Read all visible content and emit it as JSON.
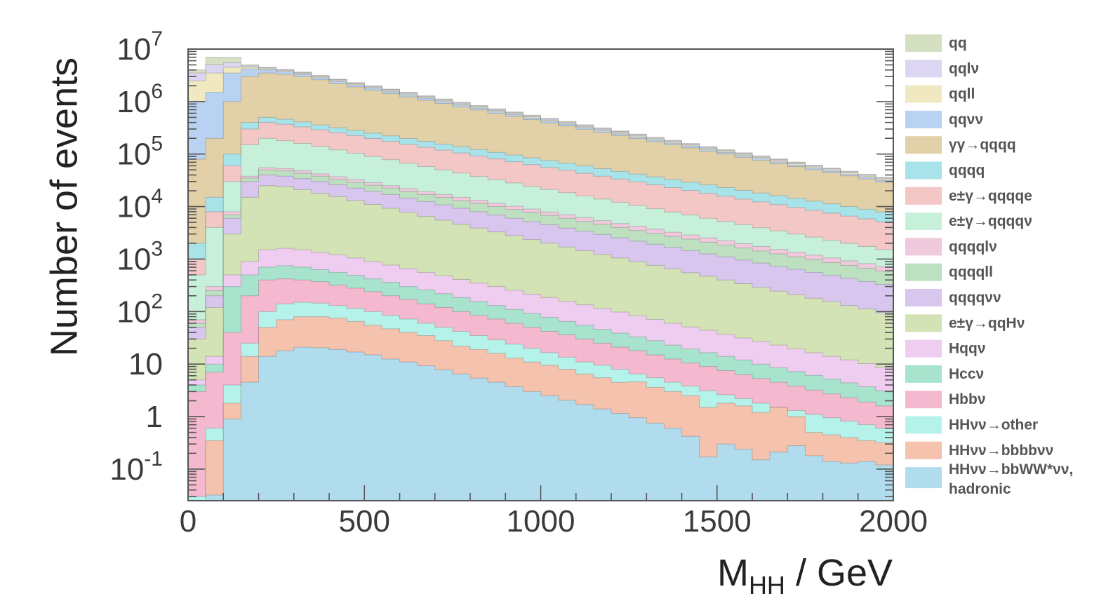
{
  "chart_data": {
    "type": "stacked-histogram",
    "xlabel": "M_HH / GeV",
    "xlabel_parts": {
      "main": "M",
      "sub": "HH",
      "rest": " / GeV"
    },
    "ylabel": "Number of events",
    "y_log_scale": true,
    "xlim": [
      0,
      2000
    ],
    "ylim": [
      0.025,
      10000000
    ],
    "bin_width": 50,
    "x_ticks": [
      {
        "value": 0,
        "label": "0"
      },
      {
        "value": 500,
        "label": "500"
      },
      {
        "value": 1000,
        "label": "1000"
      },
      {
        "value": 1500,
        "label": "1500"
      },
      {
        "value": 2000,
        "label": "2000"
      }
    ],
    "y_ticks": [
      {
        "value": 10000000,
        "base": "10",
        "exp": "7"
      },
      {
        "value": 1000000,
        "base": "10",
        "exp": "6"
      },
      {
        "value": 100000,
        "base": "10",
        "exp": "5"
      },
      {
        "value": 10000,
        "base": "10",
        "exp": "4"
      },
      {
        "value": 1000,
        "base": "10",
        "exp": "3"
      },
      {
        "value": 100,
        "base": "10",
        "exp": "2"
      },
      {
        "value": 10,
        "base": "10",
        "exp": ""
      },
      {
        "value": 1,
        "base": "1",
        "exp": ""
      },
      {
        "value": 0.1,
        "base": "10",
        "exp": "-1"
      }
    ],
    "legend_position": "right",
    "legend": [
      {
        "label": "qq",
        "color": "#d5e0c3"
      },
      {
        "label": "qqlν",
        "color": "#dcd6f3"
      },
      {
        "label": "qqll",
        "color": "#efe8c0"
      },
      {
        "label": "qqνν",
        "color": "#b9d2f2"
      },
      {
        "label": "γγ→qqqq",
        "color": "#e2d1a8"
      },
      {
        "label": "qqqq",
        "color": "#a9e3ea"
      },
      {
        "label": "e±γ→qqqqe",
        "color": "#f3c7c6"
      },
      {
        "label": "e±γ→qqqqν",
        "color": "#c7f0da"
      },
      {
        "label": "qqqqlν",
        "color": "#f0c9dc"
      },
      {
        "label": "qqqqll",
        "color": "#bde0c0"
      },
      {
        "label": "qqqqνν",
        "color": "#d8c6ef"
      },
      {
        "label": "e±γ→qqHν",
        "color": "#d3e3b5"
      },
      {
        "label": "Hqqν",
        "color": "#efcdf0"
      },
      {
        "label": "Hccν",
        "color": "#a8e3cd"
      },
      {
        "label": "Hbbν",
        "color": "#f5b9cf"
      },
      {
        "label": "HHνν→other",
        "color": "#b5f3ea"
      },
      {
        "label": "HHνν→bbbbνν",
        "color": "#f4c2ad"
      },
      {
        "label": "HHνν→bbWW*νν, hadronic",
        "label_line1": "HHνν→bbWW*νν,",
        "label_line2": "hadronic",
        "color": "#b0dcee"
      }
    ],
    "stack_order_bottom_to_top": [
      "HHνν→bbWW*νν, hadronic",
      "HHνν→bbbbνν",
      "HHνν→other",
      "Hbbν",
      "Hccν",
      "Hqqν",
      "e±γ→qqHν",
      "qqqqνν",
      "qqqqll",
      "qqqqlν",
      "e±γ→qqqqν",
      "e±γ→qqqqe",
      "qqqq",
      "γγ→qqqq",
      "qqνν",
      "qqll",
      "qqlν",
      "qq"
    ],
    "bin_edges_note": "cumulative stack top per bin, bins of 50 GeV from 0 to 2000",
    "cumulative_tops": [
      {
        "label": "HHνν→bbWW*νν, hadronic",
        "values": [
          0.02,
          0.032,
          0.9,
          4.5,
          14,
          18,
          21,
          20.5,
          19,
          17,
          15,
          12.5,
          11,
          9.3,
          7.8,
          6.5,
          5.4,
          4.5,
          3.7,
          3.0,
          2.5,
          2.05,
          1.7,
          1.4,
          1.15,
          0.95,
          0.75,
          0.6,
          0.42,
          0.17,
          0.3,
          0.24,
          0.15,
          0.21,
          0.28,
          0.18,
          0.14,
          0.13,
          0.14,
          0.12
        ]
      },
      {
        "label": "HHνν→bbbbνν",
        "values": [
          0.02,
          0.35,
          1.8,
          14,
          50,
          70,
          80,
          80,
          75,
          65,
          55,
          47,
          40,
          35,
          28,
          22,
          19,
          16,
          13,
          11,
          9.5,
          8,
          6.5,
          5.5,
          4.5,
          4.6,
          3.6,
          3.0,
          2.5,
          1.5,
          1.8,
          1.6,
          1.2,
          1.5,
          1.0,
          0.5,
          0.45,
          0.4,
          0.35,
          0.32
        ]
      },
      {
        "label": "HHνν→other",
        "values": [
          0.03,
          0.6,
          4,
          25,
          100,
          140,
          150,
          145,
          130,
          115,
          100,
          85,
          72,
          60,
          50,
          42,
          35,
          29,
          24,
          20,
          16.5,
          13.5,
          11,
          9.5,
          8,
          6.5,
          5.5,
          4.5,
          3.8,
          3.1,
          2.6,
          2.2,
          1.8,
          1.5,
          1.3,
          1.1,
          0.95,
          0.82,
          0.7,
          0.6
        ]
      },
      {
        "label": "Hbbν",
        "values": [
          3,
          7,
          40,
          200,
          400,
          420,
          400,
          370,
          320,
          280,
          240,
          200,
          170,
          140,
          120,
          100,
          85,
          72,
          60,
          50,
          42,
          36,
          30,
          25,
          21,
          18,
          15,
          12.5,
          10.5,
          9,
          7.5,
          6.3,
          5.3,
          4.5,
          3.8,
          3.2,
          2.7,
          2.3,
          1.9,
          1.6
        ]
      },
      {
        "label": "Hccν",
        "values": [
          4,
          10,
          300,
          500,
          700,
          750,
          700,
          630,
          560,
          490,
          420,
          360,
          300,
          260,
          220,
          185,
          155,
          130,
          110,
          92,
          78,
          65,
          55,
          46,
          39,
          33,
          28,
          23,
          19.5,
          16.5,
          14,
          12,
          10,
          8.5,
          7.2,
          6.1,
          5.2,
          4.4,
          3.7,
          3.1
        ]
      },
      {
        "label": "Hqqν",
        "values": [
          5,
          14,
          500,
          900,
          1500,
          1600,
          1500,
          1350,
          1200,
          1050,
          900,
          770,
          660,
          560,
          480,
          410,
          350,
          300,
          255,
          215,
          185,
          158,
          135,
          115,
          98,
          83,
          71,
          60,
          51,
          44,
          37,
          31.5,
          27,
          23,
          19.5,
          16.5,
          14,
          12,
          10.2,
          8.7
        ]
      },
      {
        "label": "e±γ→qqHν",
        "values": [
          30,
          120,
          3000,
          15000,
          25000,
          24000,
          21000,
          18000,
          15500,
          13000,
          11000,
          9300,
          7800,
          6500,
          5500,
          4600,
          3900,
          3300,
          2800,
          2350,
          2000,
          1700,
          1450,
          1230,
          1050,
          890,
          760,
          650,
          550,
          470,
          400,
          340,
          290,
          245,
          210,
          180,
          155,
          130,
          112,
          95
        ]
      },
      {
        "label": "qqqqνν",
        "values": [
          50,
          200,
          6000,
          30000,
          40000,
          38000,
          34000,
          30000,
          26000,
          22500,
          19500,
          17000,
          14500,
          12500,
          10800,
          9300,
          8000,
          6900,
          6000,
          5200,
          4500,
          3900,
          3400,
          2950,
          2550,
          2200,
          1920,
          1670,
          1450,
          1260,
          1100,
          960,
          840,
          730,
          640,
          560,
          490,
          430,
          375,
          330
        ]
      },
      {
        "label": "qqqqll",
        "values": [
          60,
          250,
          7000,
          35000,
          50000,
          48000,
          43000,
          38000,
          33000,
          29000,
          25500,
          22500,
          19500,
          17000,
          15000,
          13000,
          11500,
          10000,
          8800,
          7700,
          6800,
          6000,
          5200,
          4600,
          4000,
          3500,
          3100,
          2700,
          2400,
          2100,
          1850,
          1630,
          1430,
          1260,
          1110,
          980,
          860,
          760,
          670,
          590
        ]
      },
      {
        "label": "qqqqlν",
        "values": [
          70,
          300,
          8000,
          38000,
          55000,
          53000,
          48000,
          42000,
          37000,
          32500,
          28500,
          25000,
          22000,
          19300,
          17000,
          15000,
          13200,
          11600,
          10200,
          9000,
          7900,
          7000,
          6150,
          5400,
          4750,
          4200,
          3700,
          3250,
          2870,
          2530,
          2230,
          1970,
          1740,
          1530,
          1350,
          1190,
          1050,
          930,
          820,
          720
        ]
      },
      {
        "label": "e±γ→qqqqν",
        "values": [
          500,
          4000,
          30000,
          150000,
          200000,
          180000,
          160000,
          140000,
          120000,
          104000,
          90000,
          78000,
          67000,
          58000,
          50000,
          43500,
          37500,
          32500,
          28200,
          24400,
          21200,
          18400,
          16000,
          13900,
          12100,
          10500,
          9100,
          7900,
          6900,
          6000,
          5200,
          4550,
          3950,
          3450,
          3000,
          2620,
          2280,
          1990,
          1740,
          1520
        ]
      },
      {
        "label": "e±γ→qqqqe",
        "values": [
          1000,
          8000,
          60000,
          300000,
          400000,
          370000,
          330000,
          290000,
          255000,
          225000,
          198000,
          174000,
          153000,
          135000,
          119000,
          105000,
          92000,
          81000,
          71500,
          63000,
          55500,
          49000,
          43000,
          38000,
          33500,
          29500,
          26000,
          23000,
          20300,
          17900,
          15800,
          13900,
          12300,
          10900,
          9600,
          8500,
          7500,
          6600,
          5850,
          5150
        ]
      },
      {
        "label": "qqqq",
        "values": [
          2000,
          15000,
          100000,
          400000,
          500000,
          460000,
          410000,
          360000,
          318000,
          282000,
          250000,
          222000,
          197000,
          175000,
          155000,
          138000,
          122000,
          108000,
          96000,
          85000,
          75500,
          67000,
          59500,
          52800,
          46900,
          41600,
          36900,
          32800,
          29100,
          25900,
          23000,
          20400,
          18100,
          16100,
          14300,
          12700,
          11300,
          10000,
          8900,
          7900
        ]
      },
      {
        "label": "γγ→qqqq",
        "values": [
          80000,
          200000,
          1000000,
          3000000,
          3500000,
          3300000,
          3000000,
          2600000,
          2200000,
          1900000,
          1650000,
          1420000,
          1230000,
          1060000,
          920000,
          795000,
          690000,
          600000,
          520000,
          452000,
          393000,
          342000,
          298000,
          260000,
          226000,
          197000,
          172000,
          150000,
          131000,
          114000,
          100000,
          87000,
          76000,
          66000,
          58000,
          50500,
          44000,
          38500,
          33500,
          29500
        ]
      },
      {
        "label": "qqνν",
        "values": [
          1000000,
          1500000,
          3500000,
          4200000,
          4000000,
          3700000,
          3300000,
          2850000,
          2420000,
          2080000,
          1800000,
          1550000,
          1340000,
          1160000,
          1000000,
          866000,
          750000,
          650000,
          563000,
          489000,
          425000,
          369000,
          321000,
          280000,
          244000,
          212000,
          185000,
          161000,
          141000,
          123000,
          107000,
          93500,
          81500,
          71000,
          62000,
          54000,
          47000,
          41000,
          36000,
          31500
        ]
      },
      {
        "label": "qqll",
        "values": [
          2500000,
          3500000,
          4500000,
          4500000,
          4200000,
          3850000,
          3430000,
          2960000,
          2520000,
          2170000,
          1880000,
          1620000,
          1400000,
          1210000,
          1045000,
          905000,
          785000,
          680000,
          590000,
          512000,
          445000,
          387000,
          336000,
          293000,
          255000,
          222000,
          194000,
          169000,
          148000,
          129000,
          113000,
          98500,
          86000,
          75000,
          65500,
          57000,
          50000,
          43500,
          38000,
          33500
        ]
      },
      {
        "label": "qqlν",
        "values": [
          3500000,
          5000000,
          5500000,
          4800000,
          4400000,
          4000000,
          3560000,
          3070000,
          2620000,
          2250000,
          1950000,
          1690000,
          1460000,
          1260000,
          1090000,
          945000,
          820000,
          711000,
          617000,
          536000,
          466000,
          405000,
          352000,
          307000,
          268000,
          233000,
          203000,
          177000,
          155000,
          135000,
          118000,
          103000,
          90000,
          78500,
          68500,
          60000,
          52500,
          45800,
          40000,
          35000
        ]
      },
      {
        "label": "qq",
        "values": [
          4000000,
          7000000,
          7000000,
          5000000,
          4500000,
          4100000,
          3650000,
          3150000,
          2680000,
          2300000,
          2000000,
          1730000,
          1500000,
          1290000,
          1120000,
          970000,
          840000,
          730000,
          634000,
          551000,
          479000,
          417000,
          363000,
          316000,
          276000,
          240000,
          209000,
          182000,
          159000,
          139000,
          121000,
          106000,
          92500,
          81000,
          70500,
          61500,
          54000,
          47200,
          41300,
          36000
        ]
      }
    ]
  }
}
